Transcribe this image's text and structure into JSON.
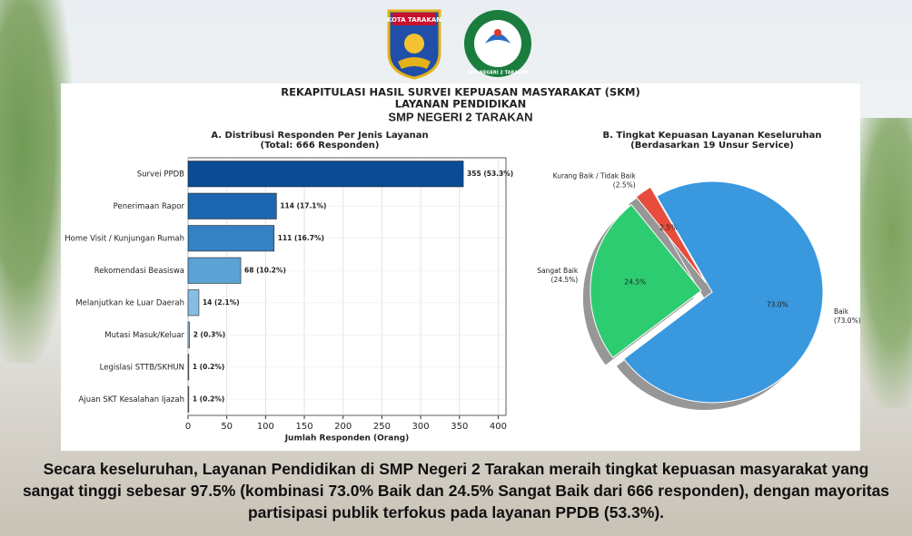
{
  "logos": [
    {
      "label": "KOTA TARAKAN"
    },
    {
      "label": "SMP NEGERI 2 TARAKAN"
    }
  ],
  "header": {
    "title": "REKAPITULASI HASIL SURVEI KEPUASAN MASYARAKAT (SKM)",
    "subtitle": "LAYANAN PENDIDIKAN",
    "school": "SMP NEGERI 2 TARAKAN"
  },
  "chart_data": [
    {
      "type": "hbar",
      "title": "A. Distribusi Responden Per Jenis Layanan",
      "subtitle": "(Total: 666 Responden)",
      "x_label": "Jumlah Responden (Orang)",
      "categories": [
        "Survei PPDB",
        "Penerimaan Rapor",
        "Home Visit / Kunjungan Rumah",
        "Rekomendasi Beasiswa",
        "Melanjutkan ke Luar Daerah",
        "Mutasi Masuk/Keluar",
        "Legislasi STTB/SKHUN",
        "Ajuan SKT Kesalahan Ijazah"
      ],
      "values": [
        355,
        114,
        111,
        68,
        14,
        2,
        1,
        1
      ],
      "value_labels": [
        "355 (53.3%)",
        "114 (17.1%)",
        "111 (16.7%)",
        "68 (10.2%)",
        "14 (2.1%)",
        "2 (0.3%)",
        "1 (0.2%)",
        "1 (0.2%)"
      ],
      "colors": [
        "#0b4a94",
        "#1c66b0",
        "#3482c2",
        "#5aa3d4",
        "#86bee3",
        "#a9d0ea",
        "#bcdcef",
        "#c8e2f1"
      ],
      "xlim": [
        0,
        410
      ],
      "xticks": [
        0,
        50,
        100,
        150,
        200,
        250,
        300,
        350,
        400
      ],
      "grid": true
    },
    {
      "type": "pie",
      "title": "B. Tingkat Kepuasan Layanan Keseluruhan",
      "subtitle": "(Berdasarkan 19 Unsur Service)",
      "categories": [
        "Baik",
        "Sangat Baik",
        "Kurang Baik / Tidak Baik"
      ],
      "values": [
        73.0,
        24.5,
        2.5
      ],
      "value_labels": [
        "(73.0%)",
        "(24.5%)",
        "(2.5%)"
      ],
      "pct_labels": [
        "73.0%",
        "24.5%",
        "2.5%"
      ],
      "colors": [
        "#3a98df",
        "#2ecc71",
        "#e74c3c"
      ],
      "explode": [
        0,
        0.1,
        0.1
      ],
      "shadow": true
    }
  ],
  "caption": "Secara keseluruhan, Layanan Pendidikan di SMP Negeri 2 Tarakan meraih tingkat kepuasan masyarakat yang sangat tinggi sebesar 97.5% (kombinasi 73.0% Baik dan 24.5% Sangat Baik dari 666 responden), dengan mayoritas partisipasi publik terfokus pada layanan PPDB (53.3%)."
}
